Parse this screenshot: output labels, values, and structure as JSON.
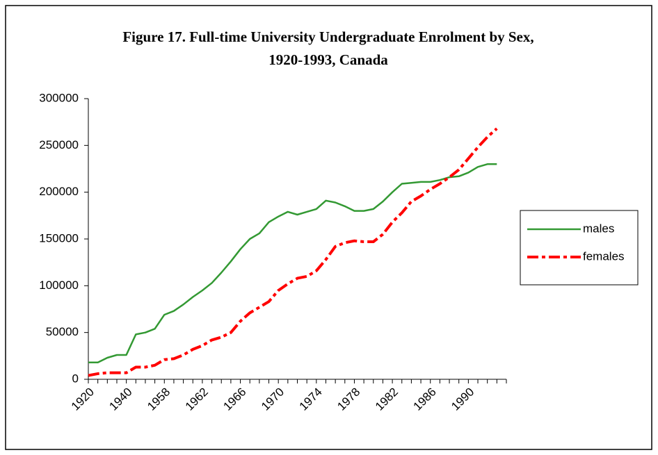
{
  "chart_data": {
    "type": "line",
    "title": [
      "Figure 17. Full-time University Undergraduate Enrolment by Sex,",
      "1920-1993, Canada"
    ],
    "categories": [
      "1920",
      null,
      null,
      null,
      "1940",
      null,
      null,
      null,
      "1958",
      null,
      null,
      null,
      "1962",
      null,
      null,
      null,
      "1966",
      null,
      null,
      null,
      "1970",
      null,
      null,
      null,
      "1974",
      null,
      null,
      null,
      "1978",
      null,
      null,
      null,
      "1982",
      null,
      null,
      null,
      "1986",
      null,
      null,
      null,
      "1990",
      null,
      null,
      null
    ],
    "series": [
      {
        "name": "males",
        "color": "#339933",
        "style": "solid",
        "values": [
          18000,
          18000,
          23000,
          26000,
          26000,
          48000,
          50000,
          54000,
          69000,
          73000,
          80000,
          88000,
          95000,
          103000,
          114000,
          126000,
          139000,
          150000,
          156000,
          168000,
          174000,
          179000,
          176000,
          179000,
          182000,
          191000,
          189000,
          185000,
          180000,
          180000,
          182000,
          190000,
          200000,
          209000,
          210000,
          211000,
          211000,
          213000,
          216000,
          217000,
          221000,
          227000,
          230000,
          230000
        ]
      },
      {
        "name": "females",
        "color": "#ff0000",
        "style": "dashed",
        "values": [
          4000,
          6000,
          7000,
          7000,
          7000,
          13000,
          13000,
          15000,
          21000,
          22000,
          26000,
          32000,
          36000,
          42000,
          45000,
          50000,
          62000,
          71000,
          77000,
          83000,
          95000,
          102000,
          108000,
          110000,
          116000,
          128000,
          142000,
          146000,
          148000,
          147000,
          147000,
          155000,
          168000,
          178000,
          190000,
          196000,
          203000,
          209000,
          216000,
          224000,
          236000,
          248000,
          259000,
          268000
        ]
      }
    ],
    "ylim": [
      0,
      300000
    ],
    "yticks": [
      0,
      50000,
      100000,
      150000,
      200000,
      250000,
      300000
    ],
    "grid": false,
    "legend": "right"
  }
}
